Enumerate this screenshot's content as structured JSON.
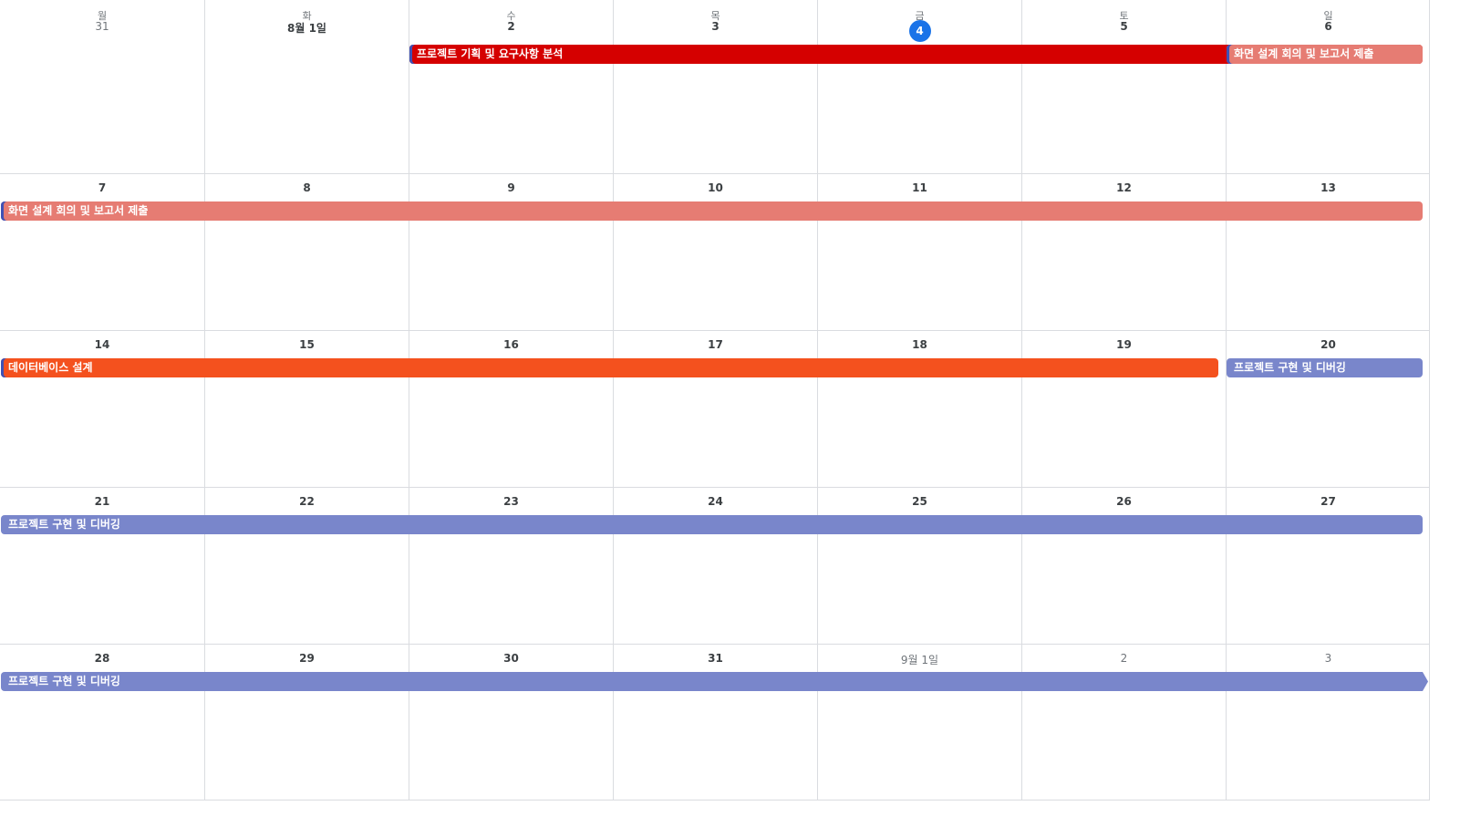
{
  "weekday_headers": [
    "월",
    "화",
    "수",
    "목",
    "금",
    "토",
    "일"
  ],
  "weeks": [
    {
      "days": [
        {
          "label": "31",
          "in_month": false
        },
        {
          "label": "8월 1일",
          "in_month": true
        },
        {
          "label": "2",
          "in_month": true
        },
        {
          "label": "3",
          "in_month": true
        },
        {
          "label": "4",
          "in_month": true,
          "today": true
        },
        {
          "label": "5",
          "in_month": true
        },
        {
          "label": "6",
          "in_month": true
        }
      ],
      "events": [
        {
          "title": "프로젝트 기획 및 요구사항 분석",
          "start_col": 2,
          "span": 5,
          "color": "#d50000",
          "edge": "left-bar"
        },
        {
          "title": "화면 설계 회의 및 보고서 제출",
          "start_col": 6,
          "span": 1,
          "color": "#e67c73",
          "edge": "left-bar"
        }
      ]
    },
    {
      "days": [
        {
          "label": "7",
          "in_month": true
        },
        {
          "label": "8",
          "in_month": true
        },
        {
          "label": "9",
          "in_month": true
        },
        {
          "label": "10",
          "in_month": true
        },
        {
          "label": "11",
          "in_month": true
        },
        {
          "label": "12",
          "in_month": true
        },
        {
          "label": "13",
          "in_month": true
        }
      ],
      "events": [
        {
          "title": "화면 설계 회의 및 보고서 제출",
          "start_col": 0,
          "span": 7,
          "color": "#e67c73",
          "edge": "left-bar"
        }
      ]
    },
    {
      "days": [
        {
          "label": "14",
          "in_month": true
        },
        {
          "label": "15",
          "in_month": true
        },
        {
          "label": "16",
          "in_month": true
        },
        {
          "label": "17",
          "in_month": true
        },
        {
          "label": "18",
          "in_month": true
        },
        {
          "label": "19",
          "in_month": true
        },
        {
          "label": "20",
          "in_month": true
        }
      ],
      "events": [
        {
          "title": "데이터베이스 설계",
          "start_col": 0,
          "span": 6,
          "color": "#f4511e",
          "edge": "left-bar"
        },
        {
          "title": "프로젝트 구현 및 디버깅",
          "start_col": 6,
          "span": 1,
          "color": "#7986cb",
          "edge": "none"
        }
      ]
    },
    {
      "days": [
        {
          "label": "21",
          "in_month": true
        },
        {
          "label": "22",
          "in_month": true
        },
        {
          "label": "23",
          "in_month": true
        },
        {
          "label": "24",
          "in_month": true
        },
        {
          "label": "25",
          "in_month": true
        },
        {
          "label": "26",
          "in_month": true
        },
        {
          "label": "27",
          "in_month": true
        }
      ],
      "events": [
        {
          "title": "프로젝트 구현 및 디버깅",
          "start_col": 0,
          "span": 7,
          "color": "#7986cb",
          "edge": "none"
        }
      ]
    },
    {
      "days": [
        {
          "label": "28",
          "in_month": true
        },
        {
          "label": "29",
          "in_month": true
        },
        {
          "label": "30",
          "in_month": true
        },
        {
          "label": "31",
          "in_month": true
        },
        {
          "label": "9월 1일",
          "in_month": false
        },
        {
          "label": "2",
          "in_month": false
        },
        {
          "label": "3",
          "in_month": false
        }
      ],
      "events": [
        {
          "title": "프로젝트 구현 및 디버깅",
          "start_col": 0,
          "span": 7,
          "color": "#7986cb",
          "edge": "continues-right"
        }
      ]
    }
  ]
}
